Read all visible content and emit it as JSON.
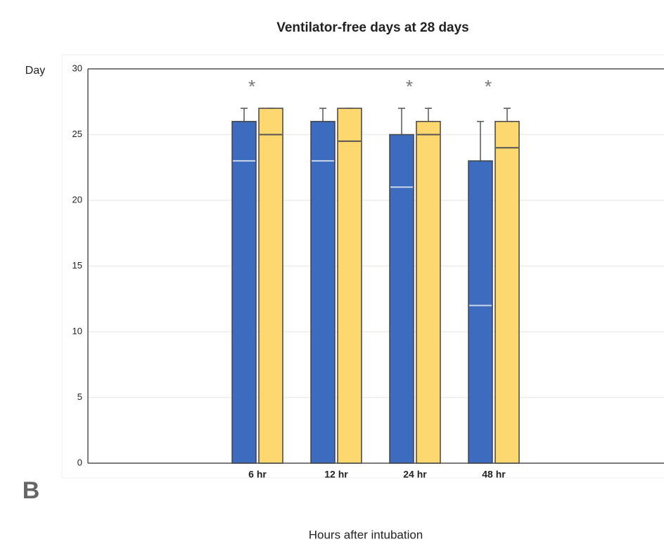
{
  "chart_data": {
    "type": "bar",
    "title": "Ventilator-free days at 28 days",
    "y_label": "Day",
    "x_label": "Hours after intubation",
    "panel_label": "B",
    "categories": [
      "6 hr",
      "12 hr",
      "24 hr",
      "48 hr"
    ],
    "annotations": [
      "*",
      null,
      "*",
      "*"
    ],
    "series": [
      {
        "color": "#3d6cbf",
        "values": [
          26,
          26,
          25,
          23
        ],
        "medians": [
          23,
          23,
          21,
          12
        ],
        "upper": [
          27,
          27,
          27,
          26
        ]
      },
      {
        "color": "#fdd86e",
        "values": [
          27,
          27,
          26,
          26
        ],
        "medians": [
          25,
          24.5,
          25,
          24
        ],
        "upper": [
          27,
          27,
          27,
          27
        ]
      }
    ],
    "ylim": [
      0,
      30
    ],
    "yticks": [
      0,
      5,
      10,
      15,
      20,
      25,
      30
    ],
    "grid": true
  }
}
